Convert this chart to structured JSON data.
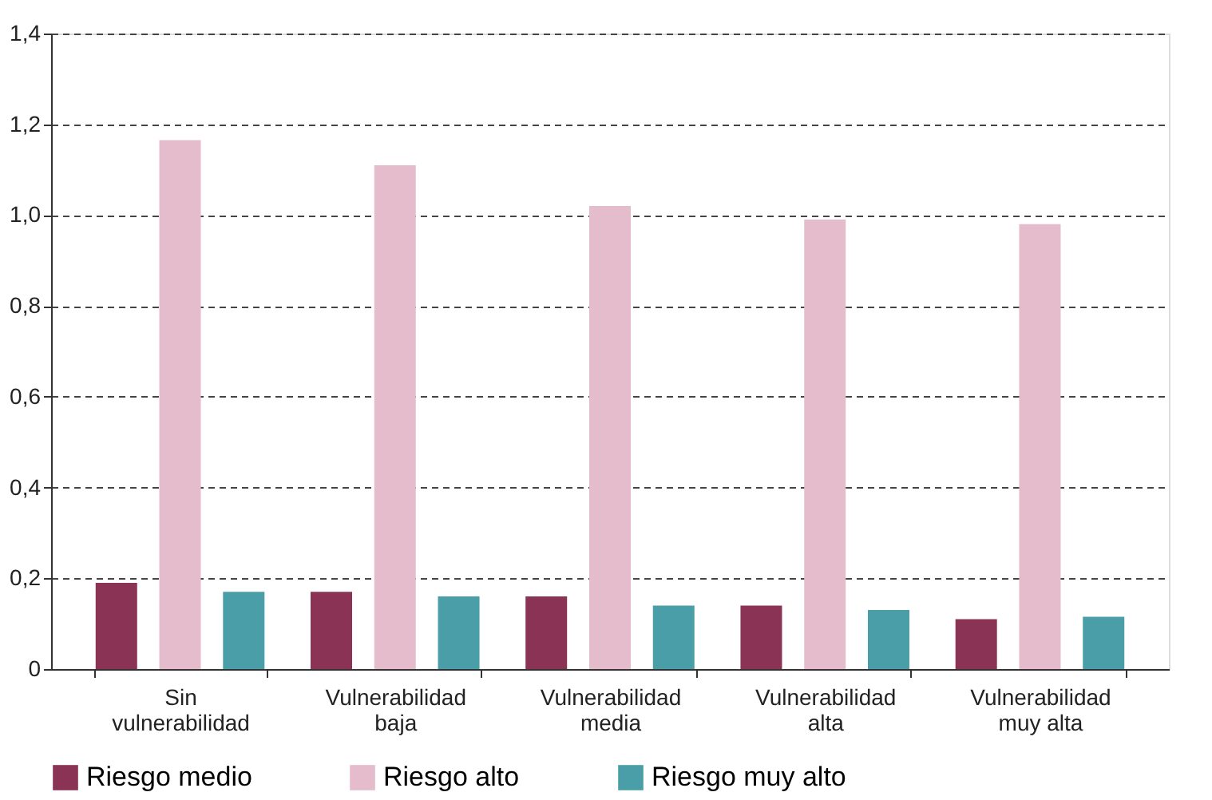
{
  "chart_data": {
    "type": "bar",
    "categories": [
      "Sin vulnerabilidad",
      "Vulnerabilidad baja",
      "Vulnerabilidad media",
      "Vulnerabilidad alta",
      "Vulnerabilidad muy alta"
    ],
    "series": [
      {
        "name": "Riesgo medio",
        "color": "#8b3354",
        "values": [
          0.19,
          0.17,
          0.16,
          0.14,
          0.11
        ]
      },
      {
        "name": "Riesgo alto",
        "color": "#e4bccb",
        "values": [
          1.165,
          1.11,
          1.02,
          0.99,
          0.98
        ]
      },
      {
        "name": "Riesgo muy alto",
        "color": "#4a9ea8",
        "values": [
          0.17,
          0.16,
          0.14,
          0.13,
          0.115
        ]
      }
    ],
    "ylim": [
      0,
      1.4
    ],
    "yticks": [
      0,
      {
        "value": 0.2,
        "label": "0,2"
      },
      {
        "value": 0.4,
        "label": "0,4"
      },
      {
        "value": 0.6,
        "label": "0,6"
      },
      {
        "value": 0.8,
        "label": "0,8"
      },
      {
        "value": 1.0,
        "label": "1,0"
      },
      {
        "value": 1.2,
        "label": "1,2"
      },
      {
        "value": 1.4,
        "label": "1,4"
      }
    ],
    "grid": "y",
    "legend": "bottom"
  }
}
